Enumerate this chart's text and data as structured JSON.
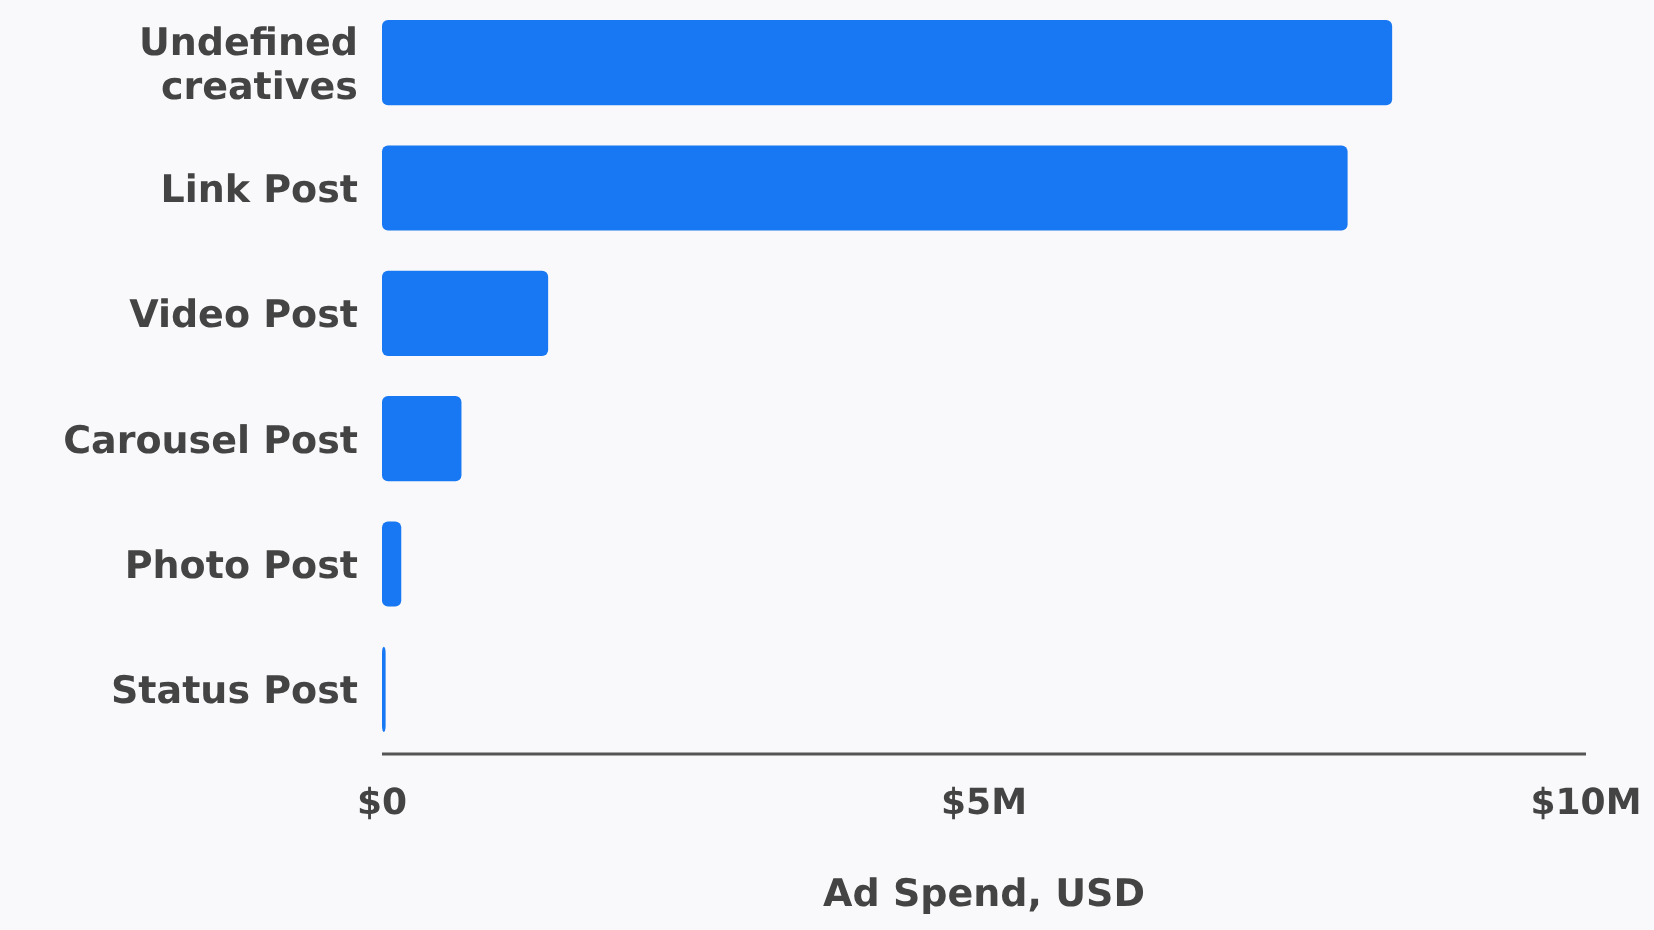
{
  "chart_data": {
    "type": "bar",
    "orientation": "horizontal",
    "categories": [
      "Undefined creatives",
      "Link Post",
      "Video Post",
      "Carousel Post",
      "Photo Post",
      "Status Post"
    ],
    "values": [
      8390000,
      8020000,
      1380000,
      660000,
      160000,
      30000
    ],
    "color": "#1877f2",
    "xlabel": "Ad Spend, USD",
    "xlim": [
      0,
      10000000
    ],
    "xticks": [
      {
        "value": 0,
        "label": "$0"
      },
      {
        "value": 5000000,
        "label": "$5M"
      },
      {
        "value": 10000000,
        "label": "$10M"
      }
    ],
    "grid": false
  }
}
